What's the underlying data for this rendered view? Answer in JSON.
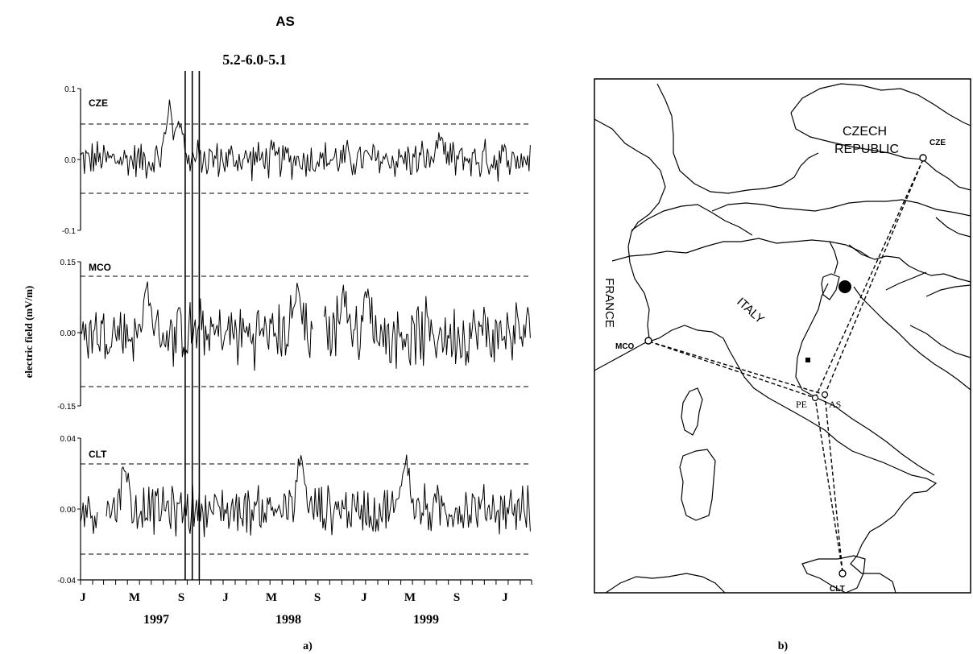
{
  "figure": {
    "title": "AS",
    "panel_a_label": "a)",
    "panel_b_label": "b)",
    "event_label": "5.2-6.0-5.1"
  },
  "chart_data": [
    {
      "type": "line",
      "panel": "a",
      "ylabel": "electric field (mV/m)",
      "x_months": [
        "J",
        "M",
        "S",
        "J",
        "M",
        "S",
        "J",
        "M",
        "S",
        "J"
      ],
      "x_years": [
        "1997",
        "1998",
        "1999"
      ],
      "x_range": [
        "1997-01",
        "2000-03"
      ],
      "event_dates": [
        "1997-09-26",
        "1997-10-14",
        "1997-11-01"
      ],
      "subplots": [
        {
          "name": "CZE",
          "yticks": [
            "0.1",
            "0.0",
            "-0.1"
          ],
          "ylim": [
            -0.1,
            0.1
          ],
          "threshold": 0.05,
          "peaks": [
            {
              "date": "1997-08-15",
              "value": 0.095
            },
            {
              "date": "1997-09-10",
              "value": 0.08
            },
            {
              "date": "1999-07-10",
              "value": 0.04
            }
          ]
        },
        {
          "name": "MCO",
          "yticks": [
            "0.15",
            "0.00",
            "-0.15"
          ],
          "ylim": [
            -0.15,
            0.15
          ],
          "threshold": 0.12,
          "gaps": [
            [
              "1998-08-20",
              "1998-09-15"
            ]
          ],
          "peaks": [
            {
              "date": "1997-06-20",
              "value": 0.12
            },
            {
              "date": "1998-07-10",
              "value": 0.12
            },
            {
              "date": "1998-11-05",
              "value": 0.11
            },
            {
              "date": "1999-01-05",
              "value": 0.11
            }
          ]
        },
        {
          "name": "CLT",
          "yticks": [
            "0.04",
            "0.00",
            "-0.04"
          ],
          "ylim": [
            -0.04,
            0.04
          ],
          "threshold": 0.025,
          "gaps": [
            [
              "1997-02-15",
              "1997-03-05"
            ]
          ],
          "peaks": [
            {
              "date": "1997-04-25",
              "value": 0.033
            },
            {
              "date": "1998-07-20",
              "value": 0.038
            },
            {
              "date": "1999-04-15",
              "value": 0.04
            }
          ]
        }
      ]
    },
    {
      "type": "map",
      "panel": "b",
      "labels": {
        "czech_line1": "CZECH",
        "czech_line2": "REPUBLIC",
        "france": "FRANCE",
        "italy": "ITALY"
      },
      "stations": [
        {
          "name": "CZE",
          "kind": "station"
        },
        {
          "name": "MCO",
          "kind": "station"
        },
        {
          "name": "CLT",
          "kind": "station"
        },
        {
          "name": "PE",
          "kind": "receiver"
        },
        {
          "name": "AS",
          "kind": "receiver"
        }
      ],
      "paths": [
        [
          "MCO",
          "PE"
        ],
        [
          "MCO",
          "AS"
        ],
        [
          "CZE",
          "PE"
        ],
        [
          "CZE",
          "AS"
        ],
        [
          "CLT",
          "PE"
        ],
        [
          "CLT",
          "AS"
        ]
      ]
    }
  ]
}
